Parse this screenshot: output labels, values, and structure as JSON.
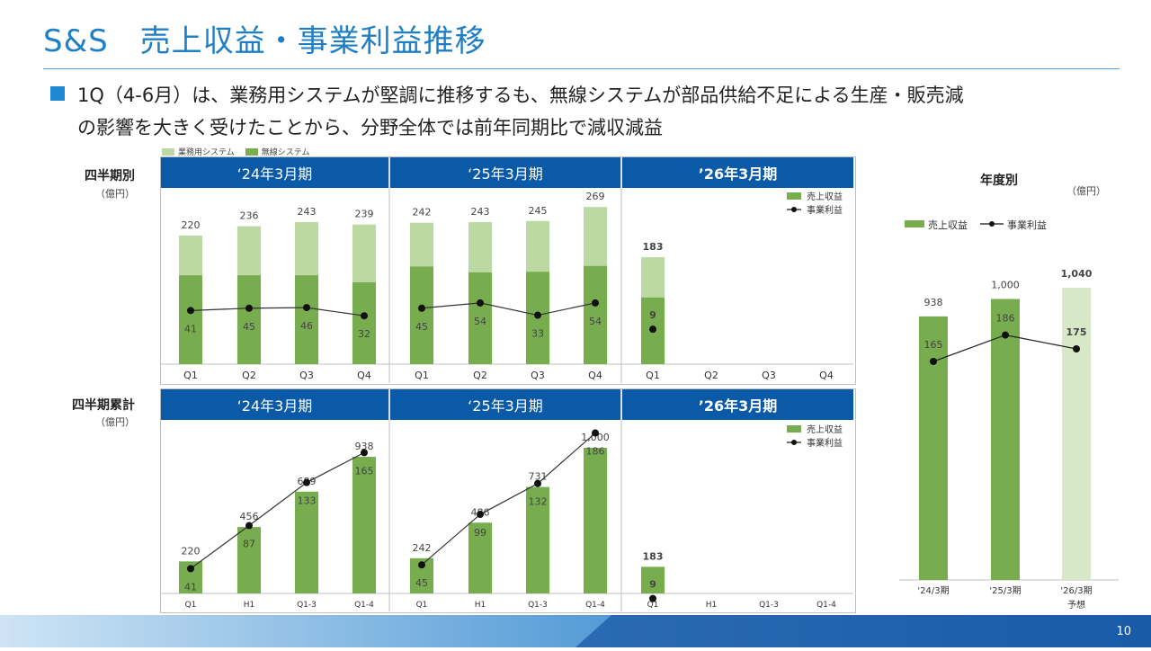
{
  "title": "S&S　売上収益・事業利益推移",
  "subtitle_line1": "1Q（4-6月）は、業務用システムが堅調に推移するも、無線システムが部品供給不足による生産・販売減",
  "subtitle_line2": "の影響を大きく受けたことから、分野全体では前年同期比で減収減益",
  "legend_top": {
    "business": "業務用システム",
    "wireless": "無線システム"
  },
  "quarterly_label": "四半期別",
  "cumulative_label": "四半期累計",
  "unit": "（億円）",
  "panel_headers": [
    "‘24年3月期",
    "‘25年3月期",
    "’26年3月期"
  ],
  "panel_legend": {
    "revenue": "売上収益",
    "profit": "事業利益"
  },
  "annual": {
    "title": "年度別",
    "unit": "（億円）",
    "legend_revenue": "売上収益",
    "legend_profit": "事業利益",
    "forecast_label": "予想"
  },
  "page_number": "10",
  "colors": {
    "dark_green": "#77ad4f",
    "light_green": "#bcd9a4",
    "forecast_green": "#d6e8c7",
    "header_blue": "#0a5aa8",
    "title_blue": "#1f7fc6"
  },
  "chart_data": [
    {
      "type": "bar",
      "name_label": "四半期別",
      "categories": [
        "Q1",
        "Q2",
        "Q3",
        "Q4",
        "Q1",
        "Q2",
        "Q3",
        "Q4",
        "Q1",
        "Q2",
        "Q3",
        "Q4"
      ],
      "periods": [
        "‘24年3月期",
        "‘25年3月期",
        "’26年3月期"
      ],
      "series": [
        {
          "name": "売上収益",
          "values": [
            220,
            236,
            243,
            239,
            242,
            243,
            245,
            269,
            183,
            null,
            null,
            null
          ]
        },
        {
          "name": "無線システム",
          "values": [
            152,
            152,
            152,
            140,
            167,
            157,
            158,
            168,
            114,
            null,
            null,
            null
          ]
        },
        {
          "name": "事業利益",
          "values": [
            41,
            45,
            46,
            32,
            45,
            54,
            33,
            54,
            9,
            null,
            null,
            null
          ]
        }
      ],
      "ylim": [
        0,
        290
      ]
    },
    {
      "type": "bar",
      "name_label": "四半期累計",
      "categories": [
        "Q1",
        "H1",
        "Q1-3",
        "Q1-4",
        "Q1",
        "H1",
        "Q1-3",
        "Q1-4",
        "Q1",
        "H1",
        "Q1-3",
        "Q1-4"
      ],
      "periods": [
        "‘24年3月期",
        "‘25年3月期",
        "’26年3月期"
      ],
      "series": [
        {
          "name": "売上収益",
          "values": [
            220,
            456,
            699,
            938,
            242,
            486,
            731,
            1000,
            183,
            null,
            null,
            null
          ]
        },
        {
          "name": "事業利益",
          "values": [
            41,
            87,
            133,
            165,
            45,
            99,
            132,
            186,
            9,
            null,
            null,
            null
          ]
        }
      ],
      "ylim": [
        0,
        1100
      ]
    },
    {
      "type": "bar",
      "name_label": "年度別",
      "categories": [
        "'24/3期",
        "'25/3期",
        "'26/3期"
      ],
      "series": [
        {
          "name": "売上収益",
          "values": [
            938,
            1000,
            1040
          ]
        },
        {
          "name": "事業利益",
          "values": [
            165,
            186,
            175
          ]
        }
      ],
      "value_labels": [
        "938",
        "1,000",
        "1,040"
      ],
      "forecast_index": 2,
      "ylim": [
        0,
        1200
      ]
    }
  ]
}
